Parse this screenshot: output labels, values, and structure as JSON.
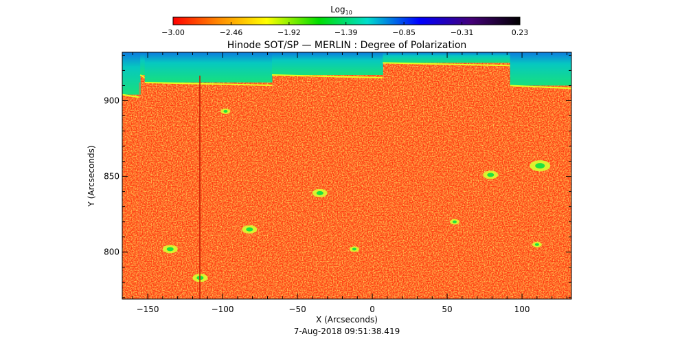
{
  "chart_data": {
    "type": "heatmap",
    "title": "Hinode SOT/SP — MERLIN : Degree of Polarization",
    "xlabel": "X (Arcseconds)",
    "ylabel": "Y (Arcseconds)",
    "timestamp": "7-Aug-2018 09:51:38.419",
    "xlim": [
      -167,
      133
    ],
    "ylim": [
      769,
      932
    ],
    "x_ticks": [
      -150,
      -100,
      -50,
      0,
      50,
      100
    ],
    "y_ticks": [
      800,
      850,
      900
    ],
    "x_tick_labels": [
      "−150",
      "−100",
      "−50",
      "0",
      "50",
      "100"
    ],
    "y_tick_labels": [
      "800",
      "850",
      "900"
    ],
    "colorbar": {
      "label_main": "Log",
      "label_sub": "10",
      "range": [
        -3.0,
        0.23
      ],
      "tick_values": [
        -3.0,
        -2.46,
        -1.92,
        -1.39,
        -0.85,
        -0.31,
        0.23
      ],
      "tick_labels": [
        "−3.00",
        "−2.46",
        "−1.92",
        "−1.39",
        "−0.85",
        "−0.31",
        "0.23"
      ],
      "colors": [
        "#ff0000",
        "#ff8800",
        "#ffff00",
        "#00dd00",
        "#00ddcc",
        "#0000ff",
        "#440077",
        "#000000"
      ]
    },
    "limb_segments": [
      {
        "x0": -167,
        "x1": -155,
        "y": 904
      },
      {
        "x0": -155,
        "x1": -152,
        "y": 917
      },
      {
        "x0": -152,
        "x1": -67,
        "y": 912
      },
      {
        "x0": -67,
        "x1": 7,
        "y": 917
      },
      {
        "x0": 7,
        "x1": 92,
        "y": 925
      },
      {
        "x0": 92,
        "x1": 133,
        "y": 910
      }
    ],
    "polarization_patches": [
      {
        "x": 112,
        "y": 857,
        "size": 3
      },
      {
        "x": 79,
        "y": 851,
        "size": 2
      },
      {
        "x": -35,
        "y": 839,
        "size": 2
      },
      {
        "x": -82,
        "y": 815,
        "size": 2
      },
      {
        "x": -135,
        "y": 802,
        "size": 2
      },
      {
        "x": -115,
        "y": 783,
        "size": 2
      },
      {
        "x": 55,
        "y": 820,
        "size": 1
      },
      {
        "x": -98,
        "y": 893,
        "size": 1
      },
      {
        "x": 110,
        "y": 805,
        "size": 1
      },
      {
        "x": -12,
        "y": 802,
        "size": 1
      }
    ]
  }
}
